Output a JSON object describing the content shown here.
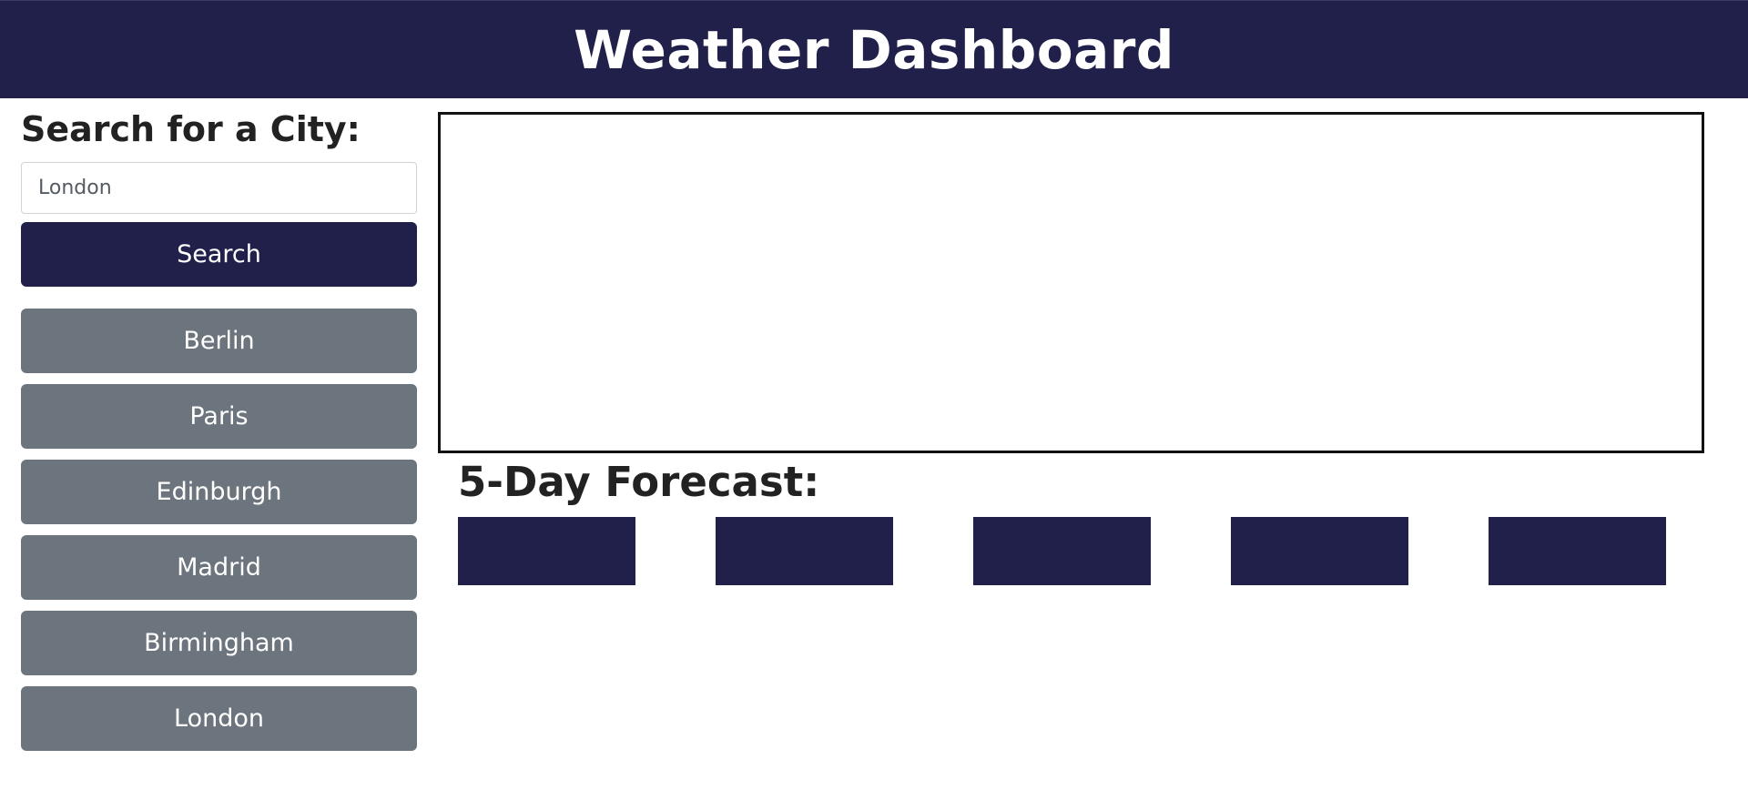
{
  "header": {
    "title": "Weather Dashboard"
  },
  "sidebar": {
    "heading": "Search for a City:",
    "search_input": {
      "value": "London",
      "placeholder": ""
    },
    "search_button_label": "Search",
    "history": [
      {
        "label": "Berlin"
      },
      {
        "label": "Paris"
      },
      {
        "label": "Edinburgh"
      },
      {
        "label": "Madrid"
      },
      {
        "label": "Birmingham"
      },
      {
        "label": "London"
      }
    ]
  },
  "main": {
    "forecast_heading": "5-Day Forecast:",
    "forecast_cards": [
      {},
      {},
      {},
      {},
      {}
    ]
  },
  "colors": {
    "primary": "#20204b",
    "history_button": "#6c757d",
    "border": "#111111"
  }
}
